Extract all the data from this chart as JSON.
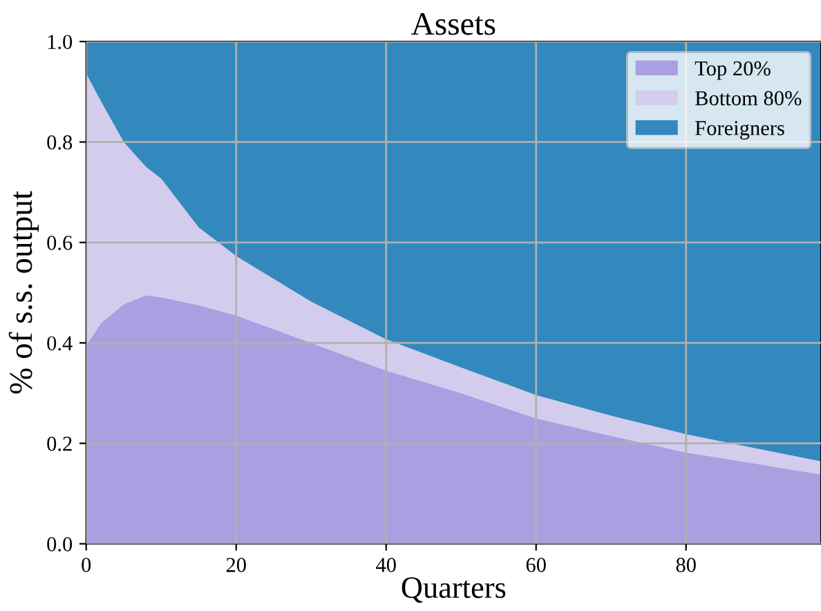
{
  "chart_data": {
    "type": "area",
    "stacked": true,
    "title": "Assets",
    "xlabel": "Quarters",
    "ylabel": "% of s.s. output",
    "x": [
      0,
      2,
      5,
      8,
      10,
      15,
      20,
      30,
      40,
      50,
      60,
      70,
      80,
      90,
      98
    ],
    "series": [
      {
        "name": "Top 20%",
        "color": "#ab9fe2",
        "values": [
          0.395,
          0.44,
          0.477,
          0.495,
          0.491,
          0.475,
          0.455,
          0.4,
          0.345,
          0.3,
          0.25,
          0.215,
          0.182,
          0.158,
          0.138
        ]
      },
      {
        "name": "Bottom 80%",
        "color": "#d4cced",
        "values": [
          0.541,
          0.44,
          0.323,
          0.255,
          0.236,
          0.155,
          0.118,
          0.082,
          0.062,
          0.051,
          0.046,
          0.04,
          0.036,
          0.03,
          0.026
        ]
      },
      {
        "name": "Foreigners",
        "color": "#3389bd",
        "values": [
          0.064,
          0.12,
          0.2,
          0.25,
          0.273,
          0.37,
          0.427,
          0.518,
          0.593,
          0.649,
          0.704,
          0.745,
          0.782,
          0.812,
          0.836
        ]
      }
    ],
    "xlim": [
      0,
      98
    ],
    "ylim": [
      0,
      1.0
    ],
    "xticks": [
      0,
      20,
      40,
      60,
      80
    ],
    "yticks": [
      {
        "value": 0,
        "label": "0.0"
      },
      0.2,
      0.4,
      0.6,
      0.8,
      {
        "value": 1,
        "label": "1.0"
      }
    ],
    "grid": true,
    "legend": "top right"
  }
}
